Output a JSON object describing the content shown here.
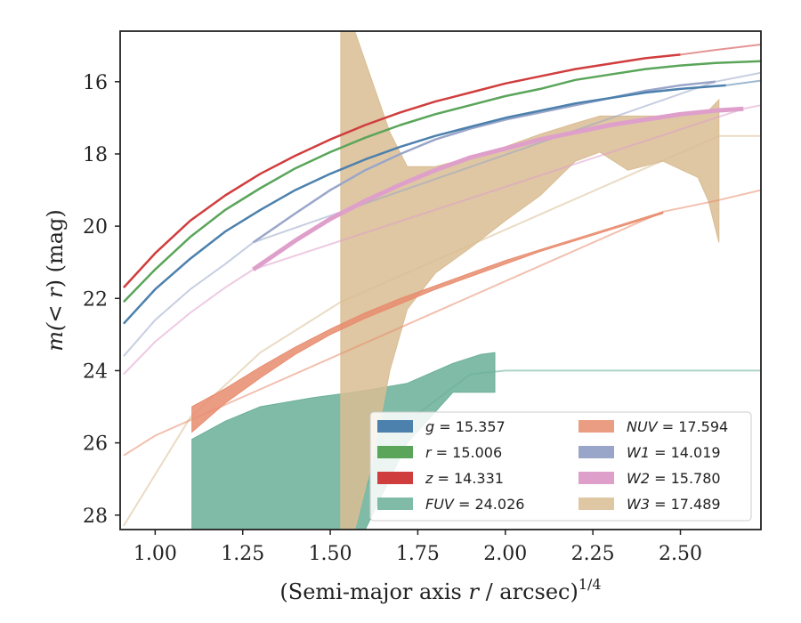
{
  "chart_data": {
    "type": "line",
    "xlabel": "(Semi-major axis r / arcsec)",
    "xlabel_italic_part": "r",
    "xlabel_exponent": "1/4",
    "ylabel_prefix": "m(",
    "ylabel_math": "< r",
    "ylabel_suffix": ") (mag)",
    "xlim": [
      0.9,
      2.73
    ],
    "ylim": [
      28.4,
      14.6
    ],
    "y_inverted": true,
    "xticks": [
      1.0,
      1.25,
      1.5,
      1.75,
      2.0,
      2.25,
      2.5
    ],
    "xtick_labels": [
      "1.00",
      "1.25",
      "1.50",
      "1.75",
      "2.00",
      "2.25",
      "2.50"
    ],
    "yticks": [
      16,
      18,
      20,
      22,
      24,
      26,
      28
    ],
    "ytick_labels": [
      "16",
      "18",
      "20",
      "22",
      "24",
      "26",
      "28"
    ],
    "grid": false,
    "legend_placement": "lower-right",
    "series": [
      {
        "name": "g",
        "label": "g = 15.357",
        "symbol": "g",
        "value": "15.357",
        "color": "#4c80ad",
        "kind": "line",
        "x": [
          0.91,
          1.0,
          1.1,
          1.2,
          1.3,
          1.4,
          1.5,
          1.6,
          1.7,
          1.8,
          1.9,
          2.0,
          2.1,
          2.2,
          2.3,
          2.4,
          2.5,
          2.6,
          2.63
        ],
        "y": [
          22.7,
          21.75,
          20.9,
          20.15,
          19.55,
          19.0,
          18.55,
          18.15,
          17.8,
          17.5,
          17.25,
          17.0,
          16.8,
          16.6,
          16.45,
          16.3,
          16.2,
          16.12,
          16.1
        ],
        "model_x": [
          2.63,
          2.73
        ],
        "model_y": [
          16.1,
          15.97
        ]
      },
      {
        "name": "r",
        "label": "r = 15.006",
        "symbol": "r",
        "value": "15.006",
        "color": "#5aa55a",
        "kind": "line",
        "x": [
          0.91,
          1.0,
          1.1,
          1.2,
          1.3,
          1.4,
          1.5,
          1.6,
          1.7,
          1.8,
          1.9,
          2.0,
          2.1,
          2.2,
          2.3,
          2.4,
          2.5,
          2.6,
          2.73
        ],
        "y": [
          22.1,
          21.2,
          20.3,
          19.55,
          18.95,
          18.4,
          17.95,
          17.55,
          17.2,
          16.9,
          16.65,
          16.4,
          16.2,
          15.95,
          15.8,
          15.65,
          15.55,
          15.48,
          15.43
        ]
      },
      {
        "name": "z",
        "label": "z = 14.331",
        "symbol": "z",
        "value": "14.331",
        "color": "#d03d3d",
        "kind": "line",
        "x": [
          0.91,
          1.0,
          1.1,
          1.2,
          1.3,
          1.4,
          1.5,
          1.6,
          1.7,
          1.8,
          1.9,
          2.0,
          2.1,
          2.2,
          2.3,
          2.4,
          2.5
        ],
        "y": [
          21.7,
          20.75,
          19.85,
          19.15,
          18.55,
          18.05,
          17.6,
          17.2,
          16.85,
          16.55,
          16.3,
          16.05,
          15.85,
          15.65,
          15.5,
          15.35,
          15.25
        ],
        "model_x": [
          2.5,
          2.6,
          2.73
        ],
        "model_y": [
          15.25,
          15.12,
          14.97
        ]
      },
      {
        "name": "FUV",
        "label": "FUV = 24.026",
        "symbol": "FUV",
        "value": "24.026",
        "color": "#6aaf99",
        "kind": "band",
        "x": [
          1.105,
          1.2,
          1.3,
          1.45,
          1.6,
          1.72,
          1.85,
          1.93,
          1.97
        ],
        "y_lower": [
          26.9,
          26.9,
          26.9,
          26.9,
          26.9,
          26.9,
          26.9,
          26.9,
          26.9
        ],
        "y_bright": [
          25.9,
          25.4,
          25.0,
          24.75,
          24.55,
          24.35,
          23.8,
          23.55,
          23.5
        ],
        "y_faint_edge": [
          28.4,
          28.4,
          28.4,
          28.4,
          28.4,
          26.0,
          24.6,
          24.6,
          24.6
        ],
        "model_x": [
          1.55,
          1.75,
          1.9,
          2.0,
          2.73
        ],
        "model_y": [
          27.9,
          25.2,
          24.1,
          24.0,
          24.0
        ]
      },
      {
        "name": "NUV",
        "label": "NUV = 17.594",
        "symbol": "NUV",
        "value": "17.594",
        "color": "#e88c6e",
        "kind": "band",
        "x": [
          1.105,
          1.2,
          1.3,
          1.4,
          1.5,
          1.6,
          1.7,
          1.8,
          1.9,
          2.0,
          2.1,
          2.2,
          2.3,
          2.4,
          2.45
        ],
        "y_bright": [
          25.0,
          24.5,
          23.9,
          23.35,
          22.85,
          22.4,
          22.0,
          21.65,
          21.3,
          20.95,
          20.65,
          20.35,
          20.05,
          19.75,
          19.6
        ],
        "y_faint": [
          25.7,
          24.9,
          24.2,
          23.55,
          23.0,
          22.55,
          22.15,
          21.75,
          21.4,
          21.05,
          20.7,
          20.4,
          20.1,
          19.8,
          19.65
        ],
        "model_x": [
          0.91,
          1.0,
          1.105,
          2.45,
          2.6,
          2.73
        ],
        "model_y": [
          26.35,
          25.8,
          25.35,
          19.6,
          19.3,
          19.0
        ]
      },
      {
        "name": "W1",
        "label": "W1 = 14.019",
        "symbol": "W1",
        "value": "14.019",
        "color": "#99a6c9",
        "kind": "line",
        "x": [
          1.28,
          1.4,
          1.5,
          1.6,
          1.7,
          1.8,
          1.9,
          2.0,
          2.1,
          2.2,
          2.3,
          2.4,
          2.5,
          2.6
        ],
        "y": [
          20.45,
          19.65,
          19.0,
          18.45,
          18.0,
          17.6,
          17.3,
          17.05,
          16.85,
          16.65,
          16.45,
          16.25,
          16.1,
          16.0
        ],
        "model_x": [
          0.91,
          1.0,
          1.1,
          1.2,
          1.28,
          2.6,
          2.73
        ],
        "model_y": [
          23.6,
          22.6,
          21.75,
          21.05,
          20.45,
          16.0,
          15.75
        ]
      },
      {
        "name": "W2",
        "label": "W2 = 15.780",
        "symbol": "W2",
        "value": "15.780",
        "color": "#df9fcb",
        "kind": "line",
        "x": [
          1.28,
          1.4,
          1.5,
          1.6,
          1.7,
          1.8,
          1.9,
          2.0,
          2.1,
          2.2,
          2.3,
          2.4,
          2.5,
          2.6,
          2.68
        ],
        "y": [
          21.2,
          20.4,
          19.8,
          19.3,
          18.85,
          18.45,
          18.1,
          17.85,
          17.6,
          17.4,
          17.2,
          17.05,
          16.9,
          16.8,
          16.75
        ],
        "model_x": [
          0.91,
          1.0,
          1.1,
          1.2,
          1.28,
          2.68,
          2.73
        ],
        "model_y": [
          24.1,
          23.2,
          22.4,
          21.7,
          21.2,
          16.75,
          16.65
        ]
      },
      {
        "name": "W3",
        "label": "W3 = 17.489",
        "symbol": "W3",
        "value": "17.489",
        "color": "#d9bd93",
        "kind": "band",
        "x": [
          1.53,
          1.57,
          1.62,
          1.67,
          1.72,
          1.8,
          1.9,
          2.0,
          2.1,
          2.2,
          2.27,
          2.35,
          2.45,
          2.55,
          2.58,
          2.61
        ],
        "y_bright": [
          14.6,
          14.6,
          16.0,
          17.4,
          18.35,
          18.35,
          18.1,
          17.8,
          17.45,
          17.15,
          16.95,
          16.95,
          16.95,
          16.85,
          16.8,
          16.5
        ],
        "y_faint": [
          28.4,
          28.4,
          26.5,
          24.0,
          22.3,
          21.3,
          20.6,
          19.85,
          19.15,
          18.2,
          17.95,
          18.45,
          18.2,
          18.65,
          19.3,
          20.45
        ],
        "model_x": [
          0.91,
          1.1,
          1.3,
          1.53,
          2.61,
          2.73
        ],
        "model_y": [
          28.3,
          25.3,
          23.5,
          22.1,
          17.5,
          17.5
        ]
      }
    ]
  }
}
